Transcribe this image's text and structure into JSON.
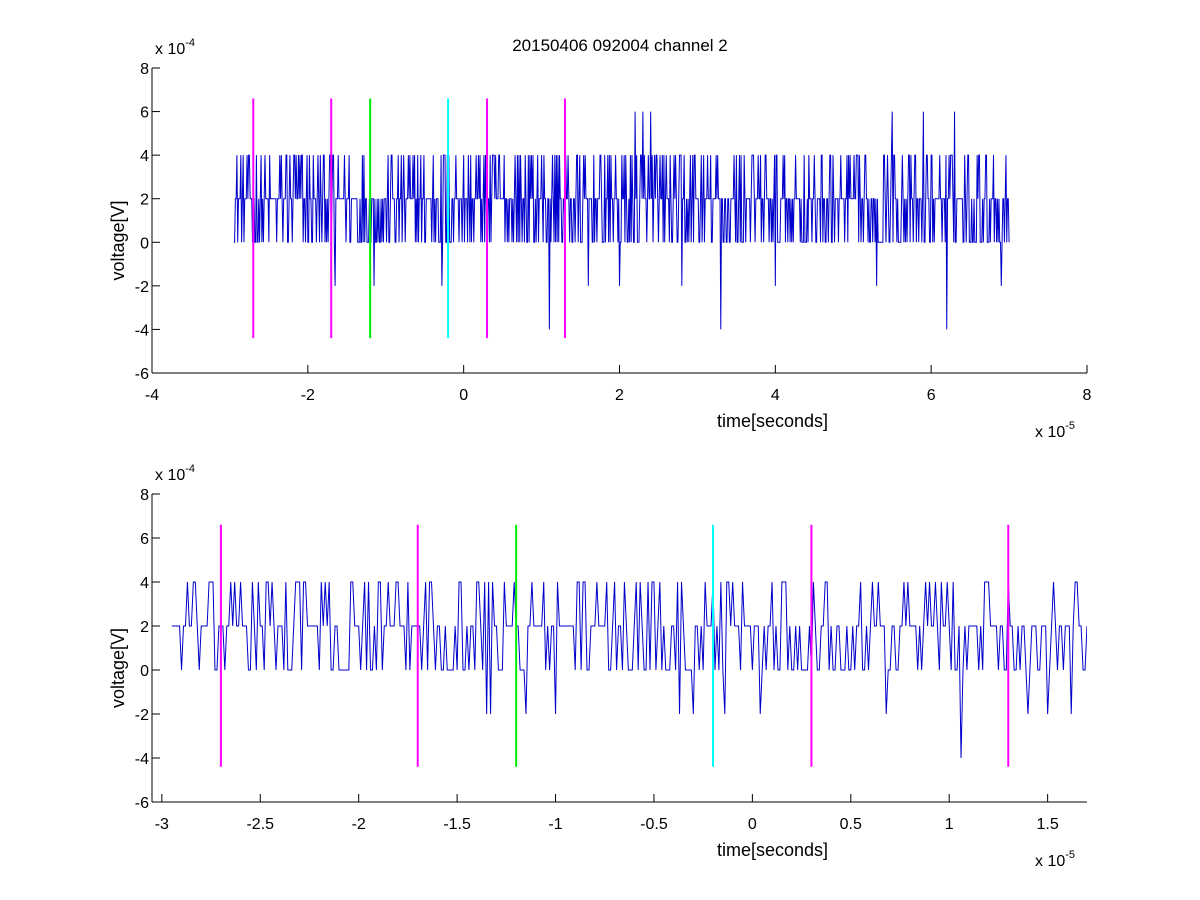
{
  "figure": {
    "title": "20150406 092004 channel 2"
  },
  "colors": {
    "signal": "#0000cc",
    "marker_magenta": "#ff00ff",
    "marker_green": "#00ee00",
    "marker_cyan": "#00ffff",
    "axes": "#000000"
  },
  "chart_data": [
    {
      "type": "line",
      "title": "20150406 092004 channel 2",
      "xlabel": "time[seconds]",
      "ylabel": "voltage[V]",
      "xlim": [
        -4e-05,
        8e-05
      ],
      "ylim": [
        -0.0006,
        0.0008
      ],
      "x_ticks": [
        -4e-05,
        -2e-05,
        0,
        2e-05,
        4e-05,
        6e-05,
        8e-05
      ],
      "x_tick_labels": [
        "-4",
        "-2",
        "0",
        "2",
        "4",
        "6",
        "8"
      ],
      "y_ticks": [
        -0.0006,
        -0.0004,
        -0.0002,
        0,
        0.0002,
        0.0004,
        0.0006,
        0.0008
      ],
      "y_tick_labels": [
        "-6",
        "-4",
        "-2",
        "0",
        "2",
        "4",
        "6",
        "8"
      ],
      "x_multiplier": {
        "base": "x 10",
        "exponent": "-5"
      },
      "y_multiplier": {
        "base": "x 10",
        "exponent": "-4"
      },
      "grid": false,
      "series": [
        {
          "x_start": -2.95e-05,
          "x_end": 7e-05,
          "sample_step": 1e-07,
          "levels": [
            -0.0004,
            -0.0002,
            0,
            0.0002,
            0.0004,
            0.0006
          ],
          "baseline": 0.0002,
          "spikes_up": [
            [
              2.2e-05,
              0.0006
            ],
            [
              2.3e-05,
              0.0006
            ],
            [
              2.4e-05,
              0.0006
            ],
            [
              5.5e-05,
              0.0006
            ],
            [
              5.9e-05,
              0.0006
            ],
            [
              6.3e-05,
              0.0006
            ],
            [
              6.9e-05,
              0.0006
            ]
          ],
          "spikes_down": [
            [
              -1.65e-05,
              -0.0002
            ],
            [
              -1.15e-05,
              -0.0002
            ],
            [
              -2.8e-06,
              -0.0002
            ],
            [
              1.1e-05,
              -0.0004
            ],
            [
              1.6e-05,
              -0.0002
            ],
            [
              2e-05,
              -0.0002
            ],
            [
              2.8e-05,
              -0.0002
            ],
            [
              3.3e-05,
              -0.0004
            ],
            [
              4e-05,
              -0.0002
            ],
            [
              5.3e-05,
              -0.0002
            ],
            [
              6.2e-05,
              -0.0004
            ],
            [
              6.9e-05,
              -0.0002
            ]
          ]
        }
      ],
      "vertical_markers": [
        {
          "x": -2.7e-05,
          "color": "magenta",
          "y_range": [
            -0.00044,
            0.00066
          ]
        },
        {
          "x": -1.7e-05,
          "color": "magenta",
          "y_range": [
            -0.00044,
            0.00066
          ]
        },
        {
          "x": -1.2e-05,
          "color": "green",
          "y_range": [
            -0.00044,
            0.00066
          ]
        },
        {
          "x": -2e-06,
          "color": "cyan",
          "y_range": [
            -0.00044,
            0.00066
          ]
        },
        {
          "x": 3e-06,
          "color": "magenta",
          "y_range": [
            -0.00044,
            0.00066
          ]
        },
        {
          "x": 1.3e-05,
          "color": "magenta",
          "y_range": [
            -0.00044,
            0.00066
          ]
        }
      ]
    },
    {
      "type": "line",
      "title": "",
      "xlabel": "time[seconds]",
      "ylabel": "voltage[V]",
      "xlim": [
        -3.05e-05,
        1.7e-05
      ],
      "ylim": [
        -0.0006,
        0.0008
      ],
      "x_ticks": [
        -3e-05,
        -2.5e-05,
        -2e-05,
        -1.5e-05,
        -1e-05,
        -5e-06,
        0,
        5e-06,
        1e-05,
        1.5e-05
      ],
      "x_tick_labels": [
        "-3",
        "-2.5",
        "-2",
        "-1.5",
        "-1",
        "-0.5",
        "0",
        "0.5",
        "1",
        "1.5"
      ],
      "y_ticks": [
        -0.0006,
        -0.0004,
        -0.0002,
        0,
        0.0002,
        0.0004,
        0.0006,
        0.0008
      ],
      "y_tick_labels": [
        "-6",
        "-4",
        "-2",
        "0",
        "2",
        "4",
        "6",
        "8"
      ],
      "x_multiplier": {
        "base": "x 10",
        "exponent": "-5"
      },
      "y_multiplier": {
        "base": "x 10",
        "exponent": "-4"
      },
      "grid": false,
      "series": [
        {
          "x_start": -2.95e-05,
          "x_end": 1.7e-05,
          "sample_step": 1e-07,
          "levels": [
            -0.0004,
            -0.0002,
            0,
            0.0002,
            0.0004
          ],
          "baseline": 0.0002,
          "spikes_down": [
            [
              -1.35e-05,
              -0.0002
            ],
            [
              -1.33e-05,
              -0.0002
            ],
            [
              -1.15e-05,
              -0.0002
            ],
            [
              -1e-05,
              -0.0002
            ],
            [
              -3.7e-06,
              -0.0002
            ],
            [
              -3e-06,
              -0.0002
            ],
            [
              -1.4e-06,
              -0.0002
            ],
            [
              3.5e-07,
              -0.0002
            ],
            [
              6.8e-06,
              -0.0002
            ],
            [
              1.06e-05,
              -0.0004
            ],
            [
              1.4e-05,
              -0.0002
            ],
            [
              1.5e-05,
              -0.0002
            ],
            [
              1.62e-05,
              -0.0002
            ]
          ]
        }
      ],
      "vertical_markers": [
        {
          "x": -2.7e-05,
          "color": "magenta",
          "y_range": [
            -0.00044,
            0.00066
          ]
        },
        {
          "x": -1.7e-05,
          "color": "magenta",
          "y_range": [
            -0.00044,
            0.00066
          ]
        },
        {
          "x": -1.2e-05,
          "color": "green",
          "y_range": [
            -0.00044,
            0.00066
          ]
        },
        {
          "x": -2e-06,
          "color": "cyan",
          "y_range": [
            -0.00044,
            0.00066
          ]
        },
        {
          "x": 3e-06,
          "color": "magenta",
          "y_range": [
            -0.00044,
            0.00066
          ]
        },
        {
          "x": 1.3e-05,
          "color": "magenta",
          "y_range": [
            -0.00044,
            0.00066
          ]
        }
      ]
    }
  ]
}
